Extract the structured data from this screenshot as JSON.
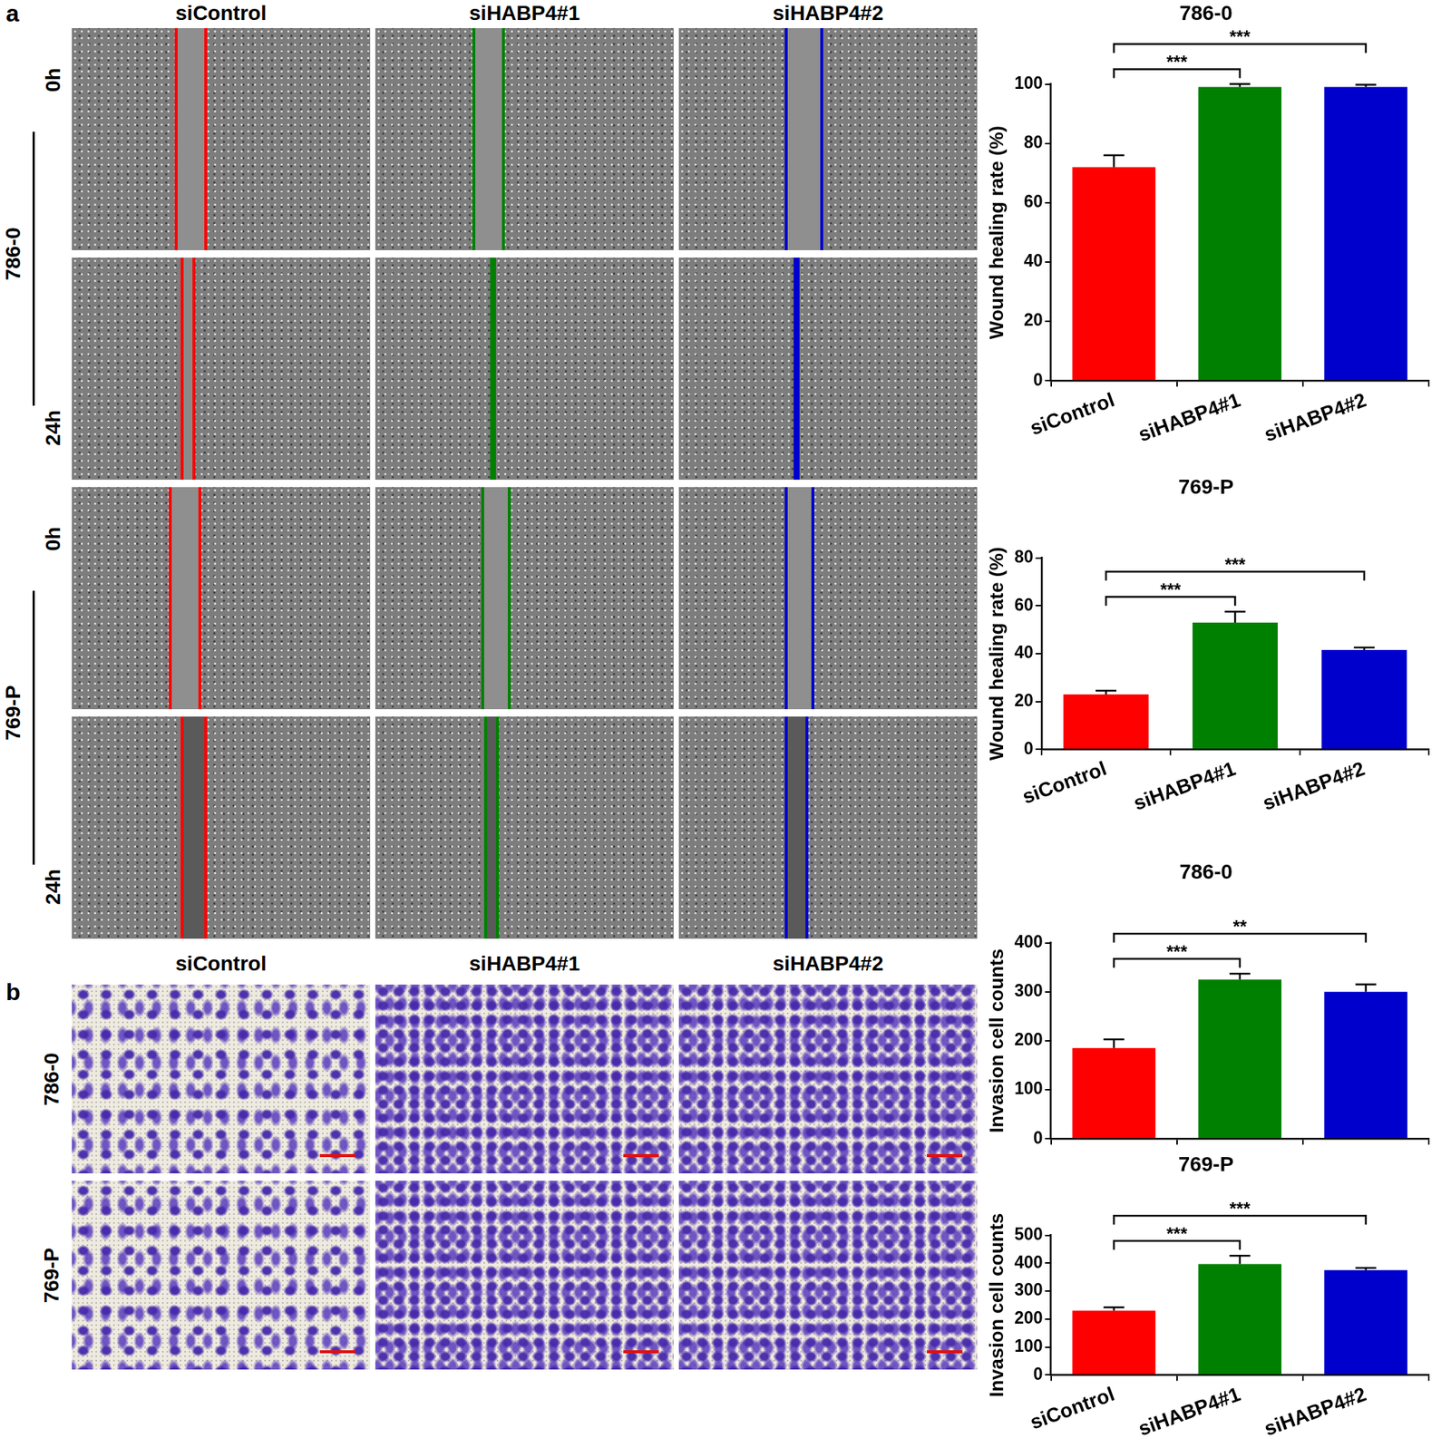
{
  "figure": {
    "panel_labels": [
      "a",
      "b"
    ],
    "columns": [
      "siControl",
      "siHABP4#1",
      "siHABP4#2"
    ],
    "wound_rows": [
      {
        "cell_line": "786-0",
        "times": [
          "0h",
          "24h"
        ]
      },
      {
        "cell_line": "769-P",
        "times": [
          "0h",
          "24h"
        ]
      }
    ],
    "invasion_rows": [
      "786-0",
      "769-P"
    ]
  },
  "chart_data": [
    {
      "type": "bar",
      "title": "786-0",
      "y_label": "Wound healing rate (%)",
      "categories": [
        "siControl",
        "siHABP4#1",
        "siHABP4#2"
      ],
      "values": [
        72,
        99,
        99
      ],
      "errors": [
        4,
        1,
        0.8
      ],
      "colors": [
        "#ff0000",
        "#008000",
        "#0000cc"
      ],
      "ylim": [
        0,
        100
      ],
      "yticks": [
        0,
        20,
        40,
        60,
        80,
        100
      ],
      "grid": false,
      "significance": [
        {
          "from": 0,
          "to": 1,
          "label": "***"
        },
        {
          "from": 0,
          "to": 2,
          "label": "***"
        }
      ]
    },
    {
      "type": "bar",
      "title": "769-P",
      "y_label": "Wound healing rate (%)",
      "categories": [
        "siControl",
        "siHABP4#1",
        "siHABP4#2"
      ],
      "values": [
        23,
        53,
        41.5
      ],
      "errors": [
        1.5,
        4.5,
        1
      ],
      "colors": [
        "#ff0000",
        "#008000",
        "#0000cc"
      ],
      "ylim": [
        0,
        80
      ],
      "yticks": [
        0,
        20,
        40,
        60,
        80
      ],
      "grid": false,
      "significance": [
        {
          "from": 0,
          "to": 1,
          "label": "***"
        },
        {
          "from": 0,
          "to": 2,
          "label": "***"
        }
      ]
    },
    {
      "type": "bar",
      "title": "786-0",
      "y_label": "Invasion cell counts",
      "categories": [
        "siControl",
        "siHABP4#1",
        "siHABP4#2"
      ],
      "values": [
        185,
        325,
        300
      ],
      "errors": [
        18,
        12,
        15
      ],
      "colors": [
        "#ff0000",
        "#008000",
        "#0000cc"
      ],
      "ylim": [
        0,
        400
      ],
      "yticks": [
        0,
        100,
        200,
        300,
        400
      ],
      "grid": false,
      "tick_labels": "y",
      "significance": [
        {
          "from": 0,
          "to": 1,
          "label": "***"
        },
        {
          "from": 0,
          "to": 2,
          "label": "**"
        }
      ]
    },
    {
      "type": "bar",
      "title": "769-P",
      "y_label": "Invasion cell counts",
      "categories": [
        "siControl",
        "siHABP4#1",
        "siHABP4#2"
      ],
      "values": [
        230,
        397,
        375
      ],
      "errors": [
        12,
        30,
        8
      ],
      "colors": [
        "#ff0000",
        "#008000",
        "#0000cc"
      ],
      "ylim": [
        0,
        500
      ],
      "yticks": [
        0,
        100,
        200,
        300,
        400,
        500
      ],
      "grid": false,
      "significance": [
        {
          "from": 0,
          "to": 1,
          "label": "***"
        },
        {
          "from": 0,
          "to": 2,
          "label": "***"
        }
      ]
    }
  ]
}
